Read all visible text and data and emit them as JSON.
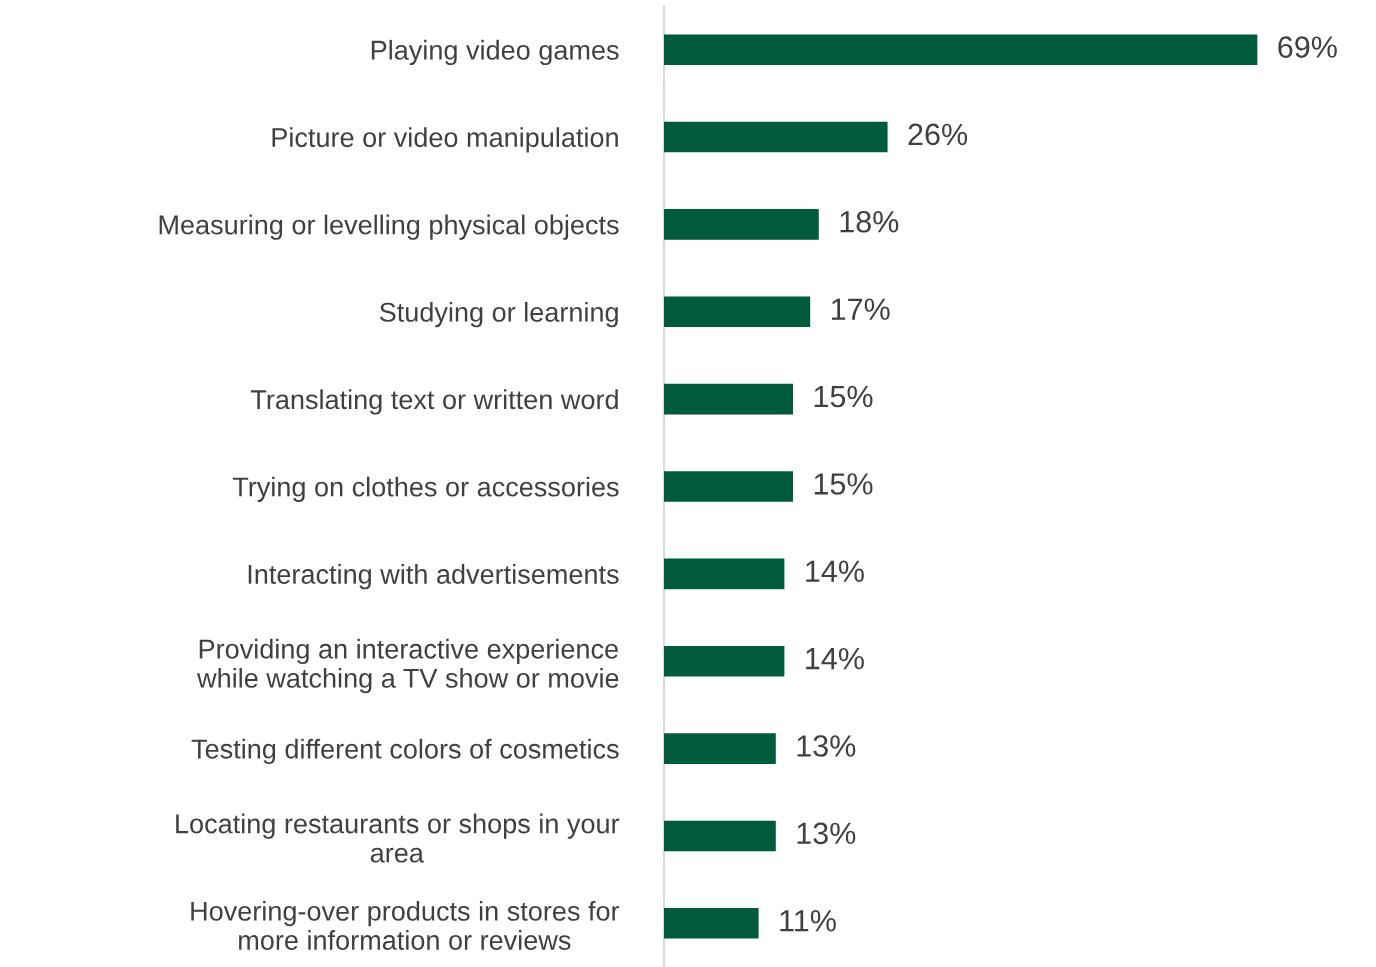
{
  "chart_data": {
    "type": "bar",
    "orientation": "horizontal",
    "categories": [
      "Playing video games",
      "Picture or video manipulation",
      "Measuring or levelling physical objects",
      "Studying or learning",
      "Translating text or written word",
      "Trying on clothes or accessories",
      "Interacting with advertisements",
      "Providing an interactive experience\nwhile watching a TV show or movie",
      "Testing different colors of cosmetics",
      "Locating restaurants or shops in your\narea",
      "Hovering-over products in stores for\nmore information or reviews"
    ],
    "values": [
      69,
      26,
      18,
      17,
      15,
      15,
      14,
      14,
      13,
      13,
      11
    ],
    "value_labels": [
      "69%",
      "26%",
      "18%",
      "17%",
      "15%",
      "15%",
      "14%",
      "14%",
      "13%",
      "13%",
      "11%"
    ],
    "color": "#005a3c",
    "grid": false,
    "legend": false,
    "tick_labels": "y"
  }
}
